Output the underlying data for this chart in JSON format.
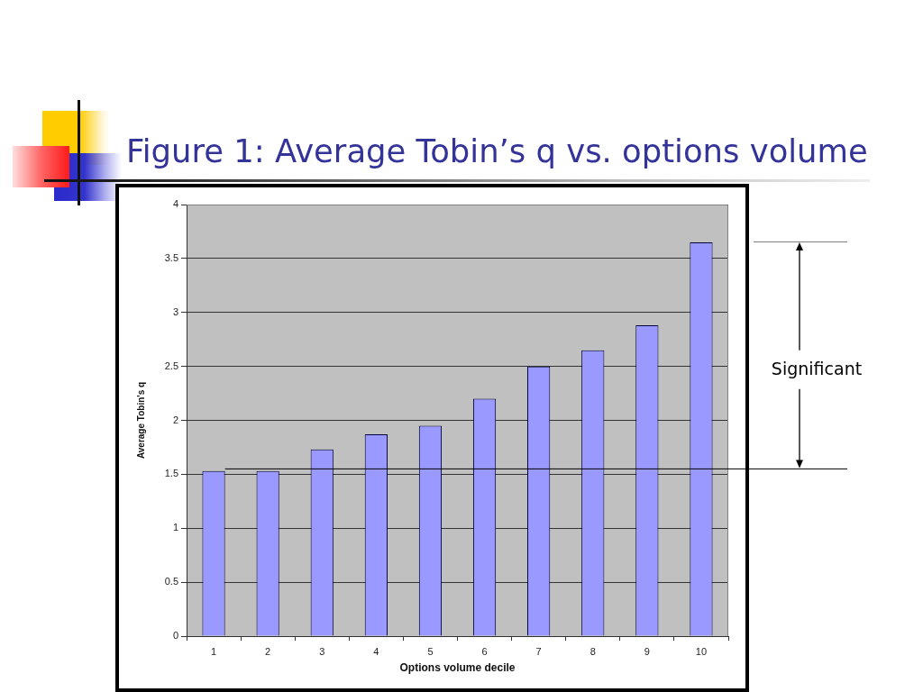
{
  "chart_data": {
    "type": "bar",
    "title": "Figure 1: Average Tobin’s q vs. options volume",
    "xlabel": "Options volume decile",
    "ylabel": "Average Tobin's q",
    "categories": [
      "1",
      "2",
      "3",
      "4",
      "5",
      "6",
      "7",
      "8",
      "9",
      "10"
    ],
    "values": [
      1.53,
      1.53,
      1.73,
      1.87,
      1.95,
      2.2,
      2.5,
      2.65,
      2.88,
      3.65
    ],
    "color": "#9999ff",
    "ylim": [
      0,
      4
    ],
    "yticks": [
      0,
      0.5,
      1,
      1.5,
      2,
      2.5,
      3,
      3.5,
      4
    ],
    "grid": "y",
    "ref_lines": [
      {
        "axis": "y",
        "value": 1.55,
        "color": "#000000"
      }
    ],
    "annotations": [
      "Significant"
    ]
  }
}
